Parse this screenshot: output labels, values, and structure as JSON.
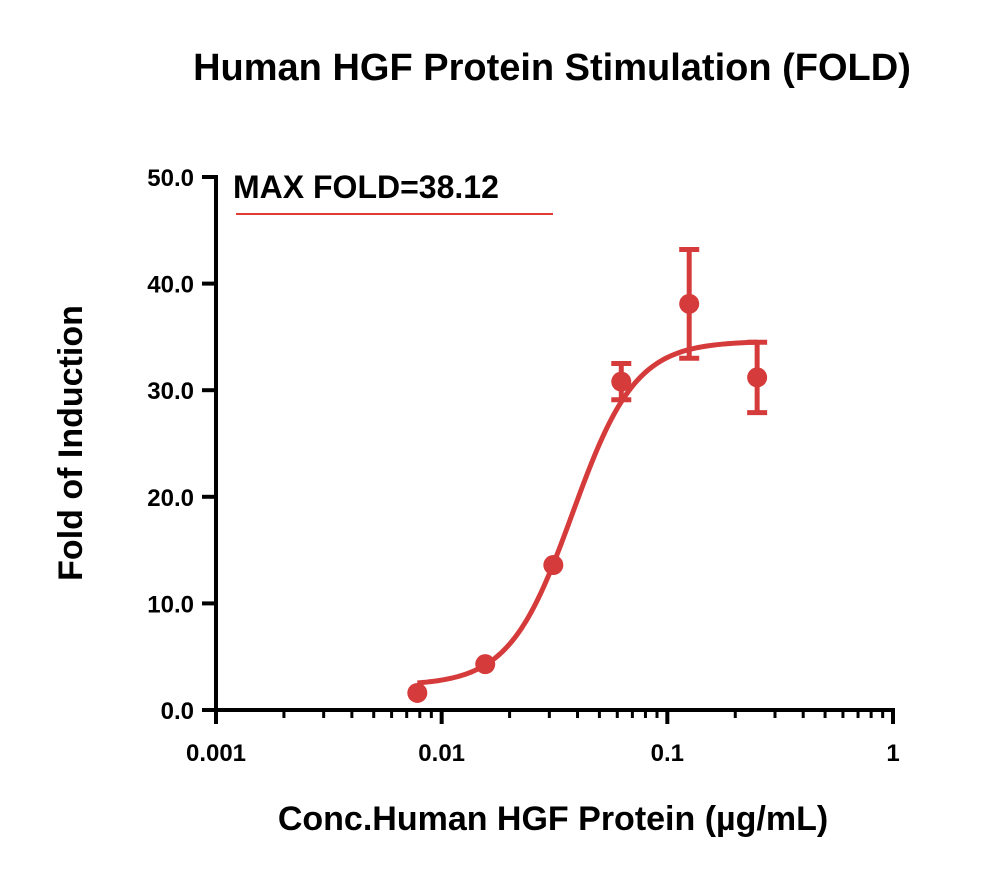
{
  "chart_data": {
    "type": "scatter",
    "title": "Human HGF Protein Stimulation (FOLD)",
    "xlabel": "Conc.Human HGF Protein (µg/mL)",
    "ylabel": "Fold of Induction",
    "x_scale": "log",
    "xlim": [
      0.001,
      1
    ],
    "ylim": [
      0,
      50
    ],
    "x_ticks": [
      0.001,
      0.01,
      0.1,
      1
    ],
    "x_tick_labels": [
      "0.001",
      "0.01",
      "0.1",
      "1"
    ],
    "y_ticks": [
      0,
      10,
      20,
      30,
      40,
      50
    ],
    "y_tick_labels": [
      "0.0",
      "10.0",
      "20.0",
      "30.0",
      "40.0",
      "50.0"
    ],
    "grid": false,
    "annotation": "MAX FOLD=38.12",
    "colors": {
      "series": "#d63b3b",
      "annotation_underline": "#e03c31",
      "axis": "#000000"
    },
    "series": [
      {
        "points": [
          {
            "x": 0.0078,
            "y": 1.6,
            "err": 0
          },
          {
            "x": 0.0156,
            "y": 4.3,
            "err": 0
          },
          {
            "x": 0.03125,
            "y": 13.6,
            "err": 0
          },
          {
            "x": 0.0625,
            "y": 30.8,
            "err": 1.7
          },
          {
            "x": 0.125,
            "y": 38.1,
            "err": 5.1
          },
          {
            "x": 0.25,
            "y": 31.2,
            "err": 3.3
          }
        ],
        "fit": {
          "model": "4PL",
          "bottom": 2.3,
          "top": 34.6,
          "ec50": 0.038,
          "hill": 3.1
        }
      }
    ]
  }
}
